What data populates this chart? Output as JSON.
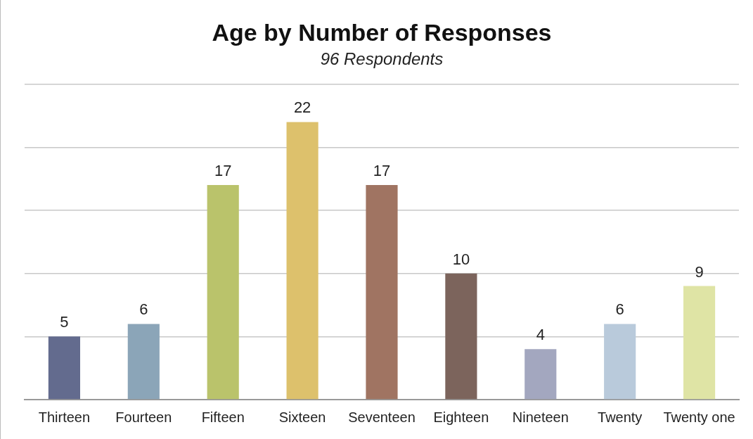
{
  "chart_data": {
    "type": "bar",
    "title": "Age by Number of Responses",
    "subtitle": "96 Respondents",
    "categories": [
      "Thirteen",
      "Fourteen",
      "Fifteen",
      "Sixteen",
      "Seventeen",
      "Eighteen",
      "Nineteen",
      "Twenty",
      "Twenty one"
    ],
    "values": [
      5,
      6,
      17,
      22,
      17,
      10,
      4,
      6,
      9
    ],
    "colors": [
      "#636b8e",
      "#8ba5b8",
      "#bac36b",
      "#ddc16c",
      "#a07462",
      "#7c645c",
      "#a3a7bf",
      "#b9cadb",
      "#dfe4a5"
    ],
    "ylim": [
      0,
      25
    ],
    "yticks": [
      {
        "value": 0,
        "label": null
      },
      {
        "value": 5,
        "label": null
      },
      {
        "value": 10,
        "label": null
      },
      {
        "value": 15,
        "label": null
      },
      {
        "value": 20,
        "label": null
      },
      {
        "value": 25,
        "label": null
      }
    ],
    "grid": "y",
    "tick_labels": "x",
    "data_labels": true,
    "legend": false
  }
}
